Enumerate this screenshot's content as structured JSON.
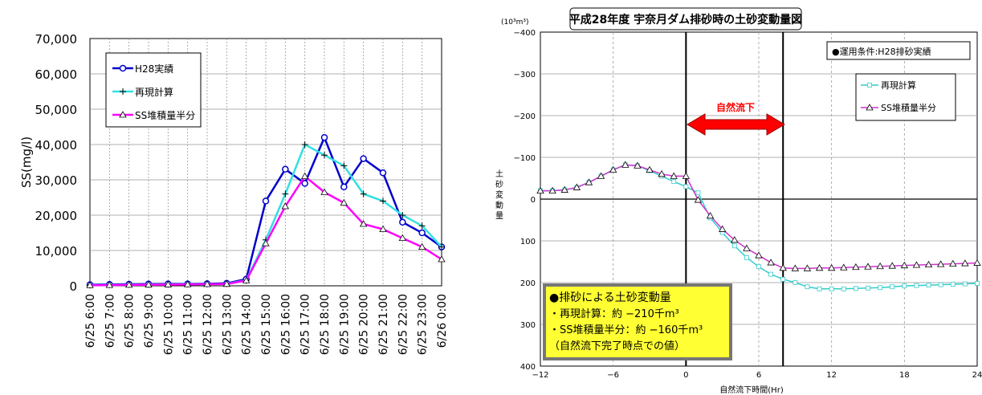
{
  "chart_data": [
    {
      "type": "line",
      "ylabel": "SS(mg/l)",
      "ylim": [
        0,
        70000
      ],
      "yticks": [
        "0",
        "10,000",
        "20,000",
        "30,000",
        "40,000",
        "50,000",
        "60,000",
        "70,000"
      ],
      "grid": true,
      "legend_position": "top-left",
      "categories": [
        "6/25 6:00",
        "6/25 7:00",
        "6/25 8:00",
        "6/25 9:00",
        "6/25 10:00",
        "6/25 11:00",
        "6/25 12:00",
        "6/25 13:00",
        "6/25 14:00",
        "6/25 15:00",
        "6/25 16:00",
        "6/25 17:00",
        "6/25 18:00",
        "6/25 19:00",
        "6/25 20:00",
        "6/25 21:00",
        "6/25 22:00",
        "6/25 23:00",
        "6/26 0:00"
      ],
      "series": [
        {
          "name": "H28実績",
          "color": "#0000cc",
          "marker": "circle",
          "values": [
            300,
            400,
            450,
            500,
            550,
            550,
            600,
            700,
            1900,
            24000,
            33000,
            29000,
            42000,
            28000,
            36000,
            32000,
            18000,
            15000,
            11000
          ]
        },
        {
          "name": "再現計算",
          "color": "#33e0e0",
          "marker": "plus",
          "values": [
            200,
            250,
            300,
            350,
            400,
            450,
            500,
            550,
            1600,
            13000,
            26000,
            40000,
            37000,
            34000,
            26000,
            24000,
            20000,
            17000,
            11000
          ]
        },
        {
          "name": "SS堆積量半分",
          "color": "#ff00ff",
          "marker": "triangle",
          "values": [
            150,
            200,
            250,
            300,
            350,
            400,
            450,
            500,
            1500,
            12000,
            22500,
            31000,
            26500,
            23500,
            17500,
            16000,
            13500,
            11000,
            7500
          ]
        }
      ]
    },
    {
      "type": "line",
      "title": "平成28年度 宇奈月ダム排砂時の土砂変動量図",
      "unit_label": "(10³m³)",
      "xlabel": "自然流下時間(Hr)",
      "ylabel": "土砂変動量",
      "xlim": [
        -12,
        24
      ],
      "ylim": [
        -400,
        400
      ],
      "y_inverted": true,
      "xticks": [
        -12,
        -6,
        0,
        6,
        12,
        18,
        24
      ],
      "yticks": [
        -400,
        -300,
        -200,
        -100,
        0,
        100,
        200,
        300,
        400
      ],
      "condition_label": "●運用条件:H28排砂実績",
      "arrow_label": "自然流下",
      "arrow_range": [
        0,
        8
      ],
      "info_box": {
        "heading": "●排砂による土砂変動量",
        "line1": "・再現計算：約 −210千m³",
        "line2": "・SS堆積量半分：約 −160千m³",
        "line3": "（自然流下完了時点での値）"
      },
      "series": [
        {
          "name": "再現計算",
          "color": "#33cccc",
          "marker": "square",
          "x": [
            -12,
            -11,
            -10,
            -9,
            -8,
            -7,
            -6,
            -5,
            -4,
            -3,
            -2,
            -1,
            0,
            1,
            2,
            3,
            4,
            5,
            6,
            7,
            8,
            9,
            10,
            11,
            12,
            13,
            14,
            15,
            16,
            17,
            18,
            19,
            20,
            21,
            22,
            23,
            24
          ],
          "y": [
            -20,
            -20,
            -22,
            -28,
            -40,
            -55,
            -70,
            -82,
            -80,
            -68,
            -55,
            -42,
            -30,
            -15,
            45,
            80,
            112,
            140,
            162,
            180,
            192,
            200,
            210,
            215,
            215,
            215,
            214,
            213,
            212,
            210,
            208,
            207,
            206,
            205,
            204,
            203,
            202
          ]
        },
        {
          "name": "SS堆積量半分",
          "color": "#cc33cc",
          "marker": "triangle",
          "x": [
            -12,
            -11,
            -10,
            -9,
            -8,
            -7,
            -6,
            -5,
            -4,
            -3,
            -2,
            -1,
            0,
            1,
            2,
            3,
            4,
            5,
            6,
            7,
            8,
            9,
            10,
            11,
            12,
            13,
            14,
            15,
            16,
            17,
            18,
            19,
            20,
            21,
            22,
            23,
            24
          ],
          "y": [
            -20,
            -20,
            -22,
            -28,
            -40,
            -55,
            -70,
            -82,
            -80,
            -70,
            -60,
            -55,
            -55,
            2,
            40,
            72,
            98,
            118,
            135,
            152,
            165,
            166,
            166,
            165,
            165,
            164,
            163,
            162,
            161,
            160,
            159,
            158,
            157,
            156,
            155,
            154,
            153
          ]
        }
      ]
    }
  ]
}
